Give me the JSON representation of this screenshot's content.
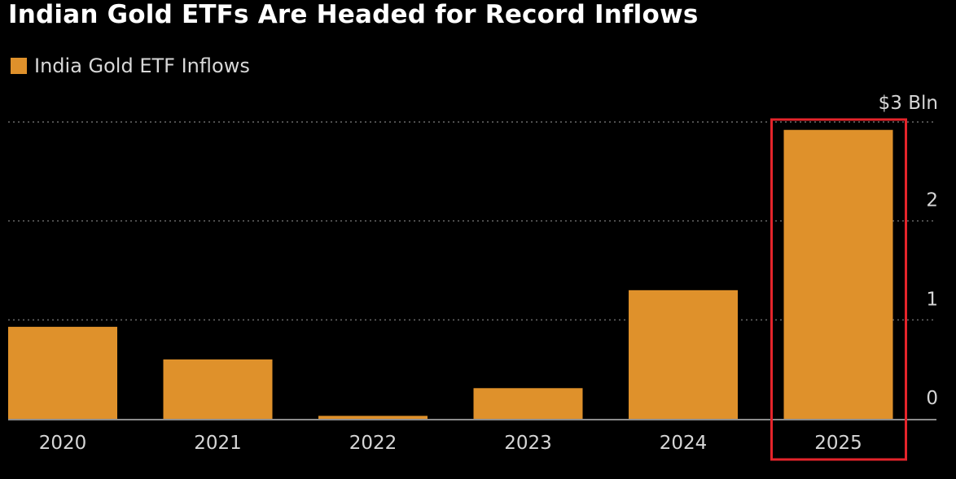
{
  "chart_data": {
    "type": "bar",
    "title": "Indian Gold ETFs Are Headed for Record Inflows",
    "series": [
      {
        "name": "India Gold ETF Inflows",
        "values": [
          0.93,
          0.6,
          0.03,
          0.31,
          1.3,
          2.92
        ]
      }
    ],
    "categories": [
      "2020",
      "2021",
      "2022",
      "2023",
      "2024",
      "2025"
    ],
    "ylim": [
      0,
      3
    ],
    "yticks": [
      {
        "value": 0,
        "label": "0"
      },
      {
        "value": 1,
        "label": "1"
      },
      {
        "value": 2,
        "label": "2"
      },
      {
        "value": 3,
        "label": "$3 Bln"
      }
    ],
    "xlabel": "",
    "ylabel": "",
    "grid": true,
    "highlight": {
      "category": "2025",
      "color": "#e5242b"
    },
    "colors": {
      "bar": "#df912b",
      "background": "#000000",
      "grid": "#6a6a6a",
      "axis": "#8c8c8c"
    }
  }
}
